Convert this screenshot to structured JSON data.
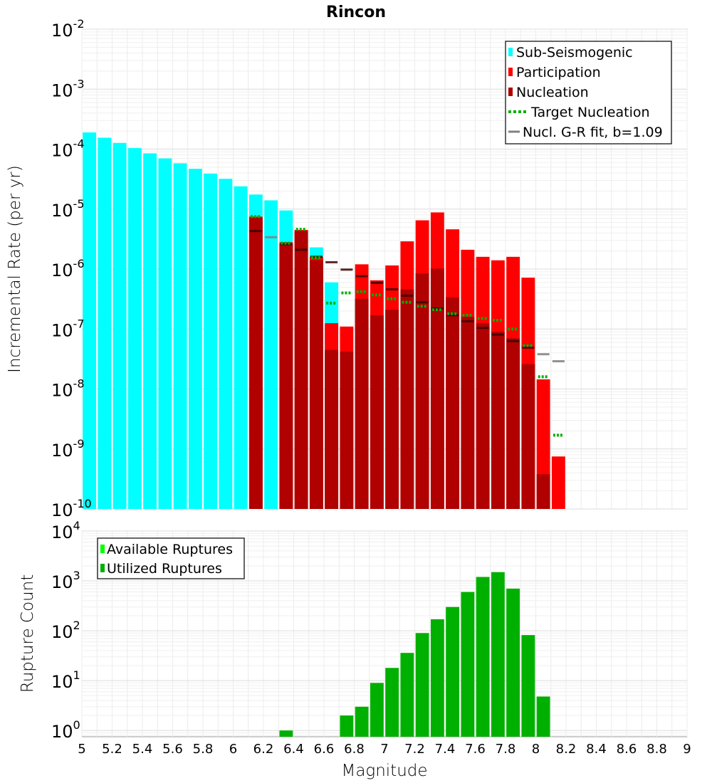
{
  "chart_data": [
    {
      "type": "bar",
      "title": "Rincon",
      "ylabel": "Incremental Rate (per yr)",
      "xlabel": "",
      "xlim": [
        5,
        9
      ],
      "ylim": [
        1e-10,
        0.01
      ],
      "yscale": "log",
      "bin_width": 0.1,
      "ytick_labels": [
        {
          "base": "10",
          "exp": "-10",
          "value": 1e-10
        },
        {
          "base": "10",
          "exp": "-9",
          "value": 1e-09
        },
        {
          "base": "10",
          "exp": "-8",
          "value": 1e-08
        },
        {
          "base": "10",
          "exp": "-7",
          "value": 1e-07
        },
        {
          "base": "10",
          "exp": "-6",
          "value": 1e-06
        },
        {
          "base": "10",
          "exp": "-5",
          "value": 1e-05
        },
        {
          "base": "10",
          "exp": "-4",
          "value": 0.0001
        },
        {
          "base": "10",
          "exp": "-3",
          "value": 0.001
        },
        {
          "base": "10",
          "exp": "-2",
          "value": 0.01
        }
      ],
      "legend": {
        "placement": "top-right",
        "entries": [
          {
            "label": "Sub-Seismogenic",
            "color": "#00ffff",
            "style": "box"
          },
          {
            "label": "Participation",
            "color": "#ff0000",
            "style": "box"
          },
          {
            "label": "Nucleation",
            "color": "#b00000",
            "style": "box"
          },
          {
            "label": "Target Nucleation",
            "color": "#00b000",
            "style": "dotted-line"
          },
          {
            "label": "Nucl. G-R fit, b=1.09",
            "color": "#808080",
            "style": "line"
          }
        ]
      },
      "series": [
        {
          "name": "Sub-Seismogenic",
          "color": "#00ffff",
          "x": [
            5.05,
            5.15,
            5.25,
            5.35,
            5.45,
            5.55,
            5.65,
            5.75,
            5.85,
            5.95,
            6.05,
            6.15,
            6.25,
            6.35,
            6.55,
            6.65
          ],
          "values": [
            0.00019,
            0.000155,
            0.000127,
            0.000104,
            8.5e-05,
            7e-05,
            5.8e-05,
            4.7e-05,
            3.9e-05,
            3.2e-05,
            2.4e-05,
            1.75e-05,
            1.4e-05,
            9.5e-06,
            2.3e-06,
            6e-07
          ]
        },
        {
          "name": "Participation",
          "color": "#ff0000",
          "x": [
            6.15,
            6.35,
            6.45,
            6.55,
            6.65,
            6.75,
            6.85,
            6.95,
            7.05,
            7.15,
            7.25,
            7.35,
            7.45,
            7.55,
            7.65,
            7.75,
            7.85,
            7.95,
            8.05,
            8.15
          ],
          "values": [
            7.5e-06,
            2.8e-06,
            4.5e-06,
            1.6e-06,
            1.25e-07,
            1.1e-07,
            1.2e-06,
            6.5e-07,
            1.15e-06,
            2.9e-06,
            6.5e-06,
            8.8e-06,
            4.6e-06,
            2.1e-06,
            1.6e-06,
            1.4e-06,
            1.6e-06,
            7.2e-07,
            1.45e-08,
            7.5e-10
          ]
        },
        {
          "name": "Nucleation",
          "color": "#b00000",
          "x": [
            6.15,
            6.35,
            6.45,
            6.55,
            6.65,
            6.75,
            6.85,
            6.95,
            7.05,
            7.15,
            7.25,
            7.35,
            7.45,
            7.55,
            7.65,
            7.75,
            7.85,
            7.95,
            8.05
          ],
          "values": [
            7.2e-06,
            2.6e-06,
            4.3e-06,
            1.4e-06,
            4.5e-08,
            4.2e-08,
            3.2e-07,
            1.7e-07,
            2.1e-07,
            4.6e-07,
            8.5e-07,
            1.02e-06,
            3.4e-07,
            1.6e-07,
            1.25e-07,
            9e-08,
            7e-08,
            2.6e-08,
            3.8e-10
          ]
        },
        {
          "name": "Target Nucleation",
          "color": "#00b000",
          "x": [
            6.15,
            6.35,
            6.45,
            6.55,
            6.65,
            6.75,
            6.85,
            6.95,
            7.05,
            7.15,
            7.25,
            7.35,
            7.45,
            7.55,
            7.65,
            7.75,
            7.85,
            7.95,
            8.05,
            8.15
          ],
          "values": [
            7.5e-06,
            2.7e-06,
            4.6e-06,
            1.55e-06,
            2.7e-07,
            4e-07,
            4.2e-07,
            3.7e-07,
            3.2e-07,
            2.8e-07,
            2.4e-07,
            2.1e-07,
            1.8e-07,
            1.7e-07,
            1.5e-07,
            1.4e-07,
            1e-07,
            5.3e-08,
            1.6e-08,
            1.7e-09
          ]
        },
        {
          "name": "Nucl. G-R fit, b=1.09",
          "color": "#808080",
          "x": [
            6.15,
            6.25,
            6.35,
            6.45,
            6.55,
            6.65,
            6.75,
            6.85,
            6.95,
            7.05,
            7.15,
            7.25,
            7.35,
            7.45,
            7.55,
            7.65,
            7.75,
            7.85,
            7.95,
            8.05,
            8.15
          ],
          "values": [
            4.3e-06,
            3.4e-06,
            2.6e-06,
            2.1e-06,
            1.6e-06,
            1.3e-06,
            9.8e-07,
            7.6e-07,
            5.9e-07,
            4.6e-07,
            3.6e-07,
            2.8e-07,
            2.2e-07,
            1.7e-07,
            1.35e-07,
            1.05e-07,
            8.1e-08,
            6.3e-08,
            4.9e-08,
            3.8e-08,
            2.9e-08
          ]
        }
      ]
    },
    {
      "type": "bar",
      "title": "",
      "ylabel": "Rupture Count",
      "xlabel": "Magnitude",
      "xlim": [
        5,
        9
      ],
      "ylim": [
        0.75,
        10000
      ],
      "yscale": "log",
      "bin_width": 0.1,
      "xtick_labels": [
        "5",
        "5.2",
        "5.4",
        "5.6",
        "5.8",
        "6",
        "6.2",
        "6.4",
        "6.6",
        "6.8",
        "7",
        "7.2",
        "7.4",
        "7.6",
        "7.8",
        "8",
        "8.2",
        "8.4",
        "8.6",
        "8.8",
        "9"
      ],
      "ytick_labels": [
        {
          "base": "10",
          "exp": "0",
          "value": 1
        },
        {
          "base": "10",
          "exp": "1",
          "value": 10
        },
        {
          "base": "10",
          "exp": "2",
          "value": 100
        },
        {
          "base": "10",
          "exp": "3",
          "value": 1000
        },
        {
          "base": "10",
          "exp": "4",
          "value": 10000
        }
      ],
      "legend": {
        "placement": "top-left",
        "entries": [
          {
            "label": "Available Ruptures",
            "color": "#00ff00",
            "style": "box"
          },
          {
            "label": "Utilized Ruptures",
            "color": "#00b000",
            "style": "box"
          }
        ]
      },
      "series": [
        {
          "name": "Utilized Ruptures",
          "color": "#00b000",
          "x": [
            6.35,
            6.75,
            6.85,
            6.95,
            7.05,
            7.15,
            7.25,
            7.35,
            7.45,
            7.55,
            7.65,
            7.75,
            7.85,
            7.95,
            8.05
          ],
          "values": [
            1,
            2,
            3,
            9,
            18,
            36,
            90,
            170,
            300,
            600,
            1200,
            1500,
            700,
            82,
            4.8
          ]
        }
      ]
    }
  ]
}
